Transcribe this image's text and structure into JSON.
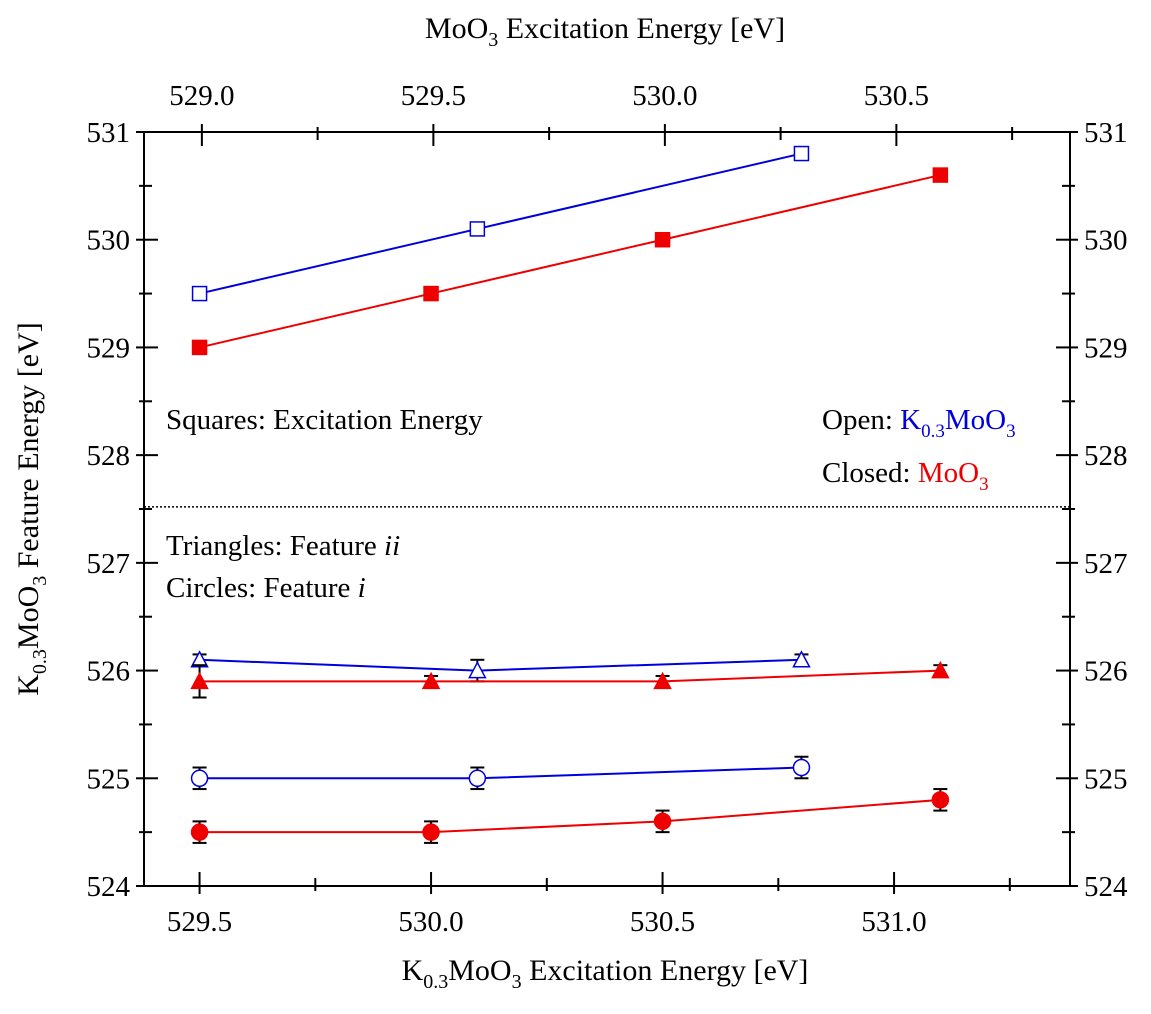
{
  "chart_data": {
    "type": "scatter",
    "title": "",
    "xlabel_bottom": {
      "main": "K",
      "sub1": "0.3",
      "mid": "MoO",
      "sub2": "3",
      "rest": " Excitation Energy [eV]"
    },
    "xlabel_top": {
      "main": "MoO",
      "sub": "3",
      "rest": " Excitation Energy [eV]"
    },
    "ylabel": {
      "main": "K",
      "sub1": "0.3",
      "mid": "MoO",
      "sub2": "3",
      "rest": " Feature Energy [eV]"
    },
    "xlim_bottom": [
      529.38,
      531.38
    ],
    "xlim_top": [
      528.875,
      530.875
    ],
    "ylim": [
      524,
      531
    ],
    "bottom_ticks": [
      "529.5",
      "530.0",
      "530.5",
      "531.0"
    ],
    "top_ticks": [
      "529.0",
      "529.5",
      "530.0",
      "530.5"
    ],
    "y_ticks": [
      "524",
      "525",
      "526",
      "527",
      "528",
      "529",
      "530",
      "531"
    ],
    "divider_y": 527.52,
    "annotations": {
      "squares": "Squares: Excitation Energy",
      "triangles_prefix": "Triangles: Feature ",
      "triangles_italic": "ii",
      "circles_prefix": "Circles: Feature ",
      "circles_italic": "i",
      "open_label": "Open: ",
      "open_formula": {
        "main": "K",
        "sub1": "0.3",
        "mid": "MoO",
        "sub2": "3"
      },
      "closed_label": "Closed: ",
      "closed_formula": {
        "main": "MoO",
        "sub": "3"
      }
    },
    "colors": {
      "blue": "#0000dd",
      "red": "#ee0000"
    },
    "series": [
      {
        "group": "squares-open",
        "marker": "square",
        "filled": false,
        "color": "blue",
        "x": [
          529.5,
          530.1,
          530.8
        ],
        "y": [
          529.5,
          530.1,
          530.8
        ],
        "err": [
          0,
          0,
          0
        ]
      },
      {
        "group": "squares-closed",
        "marker": "square",
        "filled": true,
        "color": "red",
        "x": [
          529.5,
          530.0,
          530.5,
          531.1
        ],
        "y": [
          529.0,
          529.5,
          530.0,
          530.6
        ],
        "err": [
          0,
          0,
          0,
          0
        ]
      },
      {
        "group": "triangles-open",
        "marker": "triangle",
        "filled": false,
        "color": "blue",
        "x": [
          529.5,
          530.1,
          530.8
        ],
        "y": [
          526.1,
          526.0,
          526.1
        ],
        "err": [
          0.05,
          0.1,
          0.05
        ]
      },
      {
        "group": "triangles-closed",
        "marker": "triangle",
        "filled": true,
        "color": "red",
        "x": [
          529.5,
          530.0,
          530.5,
          531.1
        ],
        "y": [
          525.9,
          525.9,
          525.9,
          526.0
        ],
        "err": [
          0.15,
          0.05,
          0.05,
          0.05
        ]
      },
      {
        "group": "circles-open",
        "marker": "circle",
        "filled": false,
        "color": "blue",
        "x": [
          529.5,
          530.1,
          530.8
        ],
        "y": [
          525.0,
          525.0,
          525.1
        ],
        "err": [
          0.1,
          0.1,
          0.1
        ]
      },
      {
        "group": "circles-closed",
        "marker": "circle",
        "filled": true,
        "color": "red",
        "x": [
          529.5,
          530.0,
          530.5,
          531.1
        ],
        "y": [
          524.5,
          524.5,
          524.6,
          524.8
        ],
        "err": [
          0.1,
          0.1,
          0.1,
          0.1
        ]
      }
    ]
  }
}
